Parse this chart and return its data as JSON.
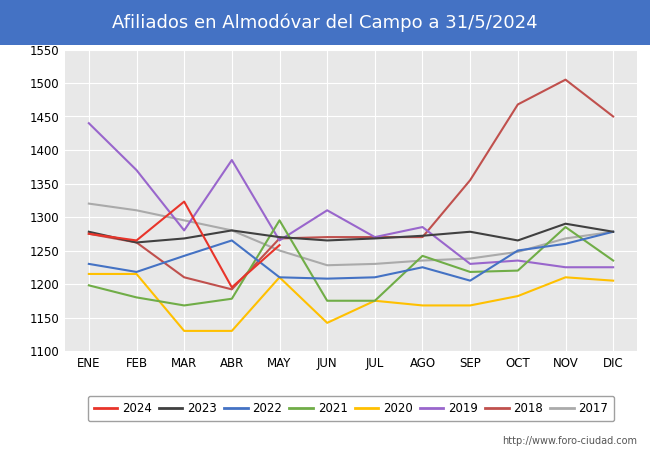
{
  "title": "Afiliados en Almodóvar del Campo a 31/5/2024",
  "title_color": "#ffffff",
  "title_bg_color": "#4472c4",
  "xlabel": "",
  "ylabel": "",
  "ylim": [
    1100,
    1550
  ],
  "yticks": [
    1100,
    1150,
    1200,
    1250,
    1300,
    1350,
    1400,
    1450,
    1500,
    1550
  ],
  "months": [
    "ENE",
    "FEB",
    "MAR",
    "ABR",
    "MAY",
    "JUN",
    "JUL",
    "AGO",
    "SEP",
    "OCT",
    "NOV",
    "DIC"
  ],
  "watermark": "http://www.foro-ciudad.com",
  "series": {
    "2024": {
      "color": "#e8342a",
      "data": [
        1275,
        1265,
        1323,
        1195,
        1258,
        null,
        null,
        null,
        null,
        null,
        null,
        null
      ]
    },
    "2023": {
      "color": "#404040",
      "data": [
        1278,
        1262,
        1268,
        1280,
        1270,
        1265,
        1268,
        1272,
        1278,
        1265,
        1290,
        1278
      ]
    },
    "2022": {
      "color": "#4472c4",
      "data": [
        1230,
        1218,
        1242,
        1265,
        1210,
        1208,
        1210,
        1225,
        1205,
        1250,
        1260,
        1278
      ]
    },
    "2021": {
      "color": "#70ad47",
      "data": [
        1198,
        1180,
        1168,
        1178,
        1295,
        1175,
        1175,
        1242,
        1218,
        1220,
        1285,
        1235
      ]
    },
    "2020": {
      "color": "#ffc000",
      "data": [
        1215,
        1215,
        1130,
        1130,
        1210,
        1142,
        1175,
        1168,
        1168,
        1182,
        1210,
        1205
      ]
    },
    "2019": {
      "color": "#9966cc",
      "data": [
        1440,
        1370,
        1280,
        1385,
        1265,
        1310,
        1270,
        1285,
        1230,
        1235,
        1225,
        1225
      ]
    },
    "2018": {
      "color": "#c0504d",
      "data": [
        1275,
        1262,
        1210,
        1192,
        1268,
        1270,
        1270,
        1270,
        1355,
        1468,
        1505,
        1450
      ]
    },
    "2017": {
      "color": "#aaaaaa",
      "data": [
        1320,
        1310,
        1295,
        1280,
        1250,
        1228,
        1230,
        1235,
        1238,
        1248,
        1268,
        1278
      ]
    }
  }
}
